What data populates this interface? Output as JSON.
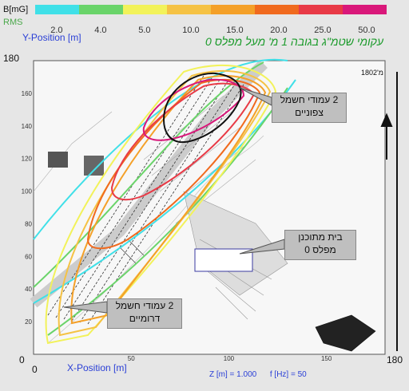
{
  "legend": {
    "unit_label": "B[mG]",
    "rms_label": "RMS",
    "values": [
      "2.0",
      "4.0",
      "5.0",
      "10.0",
      "15.0",
      "20.0",
      "25.0",
      "50.0"
    ],
    "colors": [
      "#40e0e8",
      "#6ad46a",
      "#f2f25a",
      "#f5c244",
      "#f4a028",
      "#f06a1e",
      "#e83a46",
      "#d9187a"
    ]
  },
  "title": "עקומי שטמ\"ג  בגובה 1 מ' מעל מפלס 0",
  "axes": {
    "y_label": "Y-Position [m]",
    "x_label": "X-Position [m]",
    "y_max_label": "180",
    "x_max_label": "180",
    "x_min_label": "0",
    "y_min_label": "0"
  },
  "footer": {
    "z_text": "Z [m] = 1.000",
    "f_text": "f [Hz] = 50"
  },
  "callouts": {
    "north_towers": [
      "2 עמודי חשמל",
      "צפוניים"
    ],
    "planned_house": [
      "בית מתוכנן",
      "מפלס 0"
    ],
    "south_towers": [
      "2 עמודי חשמל",
      "דרומיים"
    ]
  },
  "map_corner_label": "180מ'2",
  "chart_data": {
    "type": "contour",
    "title": "עקומי שטמ\"ג  בגובה 1 מ' מעל מפלס 0",
    "xlabel": "X-Position [m]",
    "ylabel": "Y-Position [m]",
    "xlim": [
      0,
      180
    ],
    "ylim": [
      0,
      180
    ],
    "x_ticks": [
      50,
      100,
      150
    ],
    "y_ticks": [
      20,
      40,
      60,
      80,
      100,
      120,
      140,
      160
    ],
    "levels_mG": [
      2.0,
      4.0,
      5.0,
      10.0,
      15.0,
      20.0,
      25.0,
      50.0
    ],
    "z_m": 1.0,
    "f_hz": 50
  }
}
